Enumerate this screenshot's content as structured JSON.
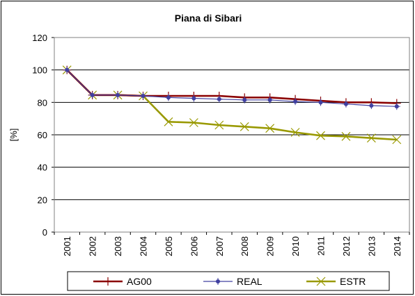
{
  "chart_data": {
    "type": "line",
    "title": "Piana di Sibari",
    "xlabel": "",
    "ylabel": "[%]",
    "ylim": [
      0,
      120
    ],
    "yticks": [
      "0",
      "20",
      "40",
      "60",
      "80",
      "100",
      "120"
    ],
    "categories": [
      "2001",
      "2002",
      "2003",
      "2004",
      "2005",
      "2006",
      "2007",
      "2008",
      "2009",
      "2010",
      "2011",
      "2012",
      "2013",
      "2014"
    ],
    "grid": true,
    "legend_position": "bottom",
    "series": [
      {
        "name": "AG00",
        "color": "#8b0000",
        "marker": "plus",
        "values": [
          100,
          84.5,
          84.5,
          84,
          84,
          84,
          84,
          83,
          83,
          82,
          81,
          80,
          80,
          79.5
        ]
      },
      {
        "name": "REAL",
        "color": "#4040a0",
        "marker": "star",
        "values": [
          100,
          84.5,
          84.5,
          84,
          83,
          82.5,
          82,
          81.5,
          81.5,
          80.5,
          80,
          79,
          78,
          77.5
        ]
      },
      {
        "name": "ESTR",
        "color": "#999900",
        "marker": "x",
        "values": [
          100,
          84.5,
          84.5,
          84,
          68,
          67.5,
          66,
          65,
          64,
          61.5,
          59.5,
          59,
          58,
          57
        ]
      }
    ]
  }
}
